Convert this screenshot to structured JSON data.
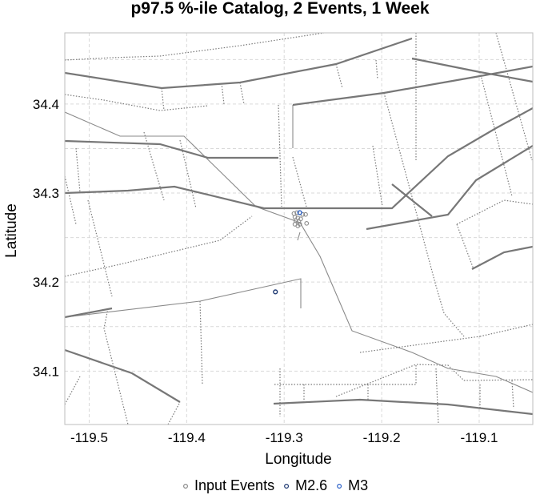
{
  "chart_data": {
    "type": "scatter",
    "title": "p97.5 %-ile Catalog, 2 Events, 1 Week",
    "xlabel": "Longitude",
    "ylabel": "Latitude",
    "xlim": [
      -119.525,
      -119.045
    ],
    "ylim": [
      34.04,
      34.48
    ],
    "xticks": [
      -119.5,
      -119.4,
      -119.3,
      -119.2,
      -119.1
    ],
    "xtick_labels": [
      "-119.5",
      "-119.4",
      "-119.3",
      "-119.2",
      "-119.1"
    ],
    "yticks": [
      34.1,
      34.2,
      34.3,
      34.4
    ],
    "ytick_labels": [
      "34.1",
      "34.2",
      "34.3",
      "34.4"
    ],
    "grid": true,
    "legend_position": "bottom",
    "series": [
      {
        "name": "Input Events",
        "color": "#8c8c8c",
        "marker": "open-circle",
        "points": [
          {
            "x": -119.29,
            "y": 34.277
          },
          {
            "x": -119.287,
            "y": 34.278
          },
          {
            "x": -119.284,
            "y": 34.278
          },
          {
            "x": -119.281,
            "y": 34.276
          },
          {
            "x": -119.278,
            "y": 34.276
          },
          {
            "x": -119.289,
            "y": 34.273
          },
          {
            "x": -119.286,
            "y": 34.272
          },
          {
            "x": -119.283,
            "y": 34.271
          },
          {
            "x": -119.288,
            "y": 34.269
          },
          {
            "x": -119.285,
            "y": 34.268
          },
          {
            "x": -119.289,
            "y": 34.265
          },
          {
            "x": -119.286,
            "y": 34.263
          },
          {
            "x": -119.277,
            "y": 34.266
          },
          {
            "x": -119.284,
            "y": 34.265
          }
        ]
      },
      {
        "name": "M2.6",
        "color": "#1f3a73",
        "marker": "open-circle",
        "points": [
          {
            "x": -119.309,
            "y": 34.189
          }
        ]
      },
      {
        "name": "M3",
        "color": "#2e63c9",
        "marker": "open-circle",
        "points": [
          {
            "x": -119.284,
            "y": 34.278
          }
        ]
      }
    ]
  }
}
